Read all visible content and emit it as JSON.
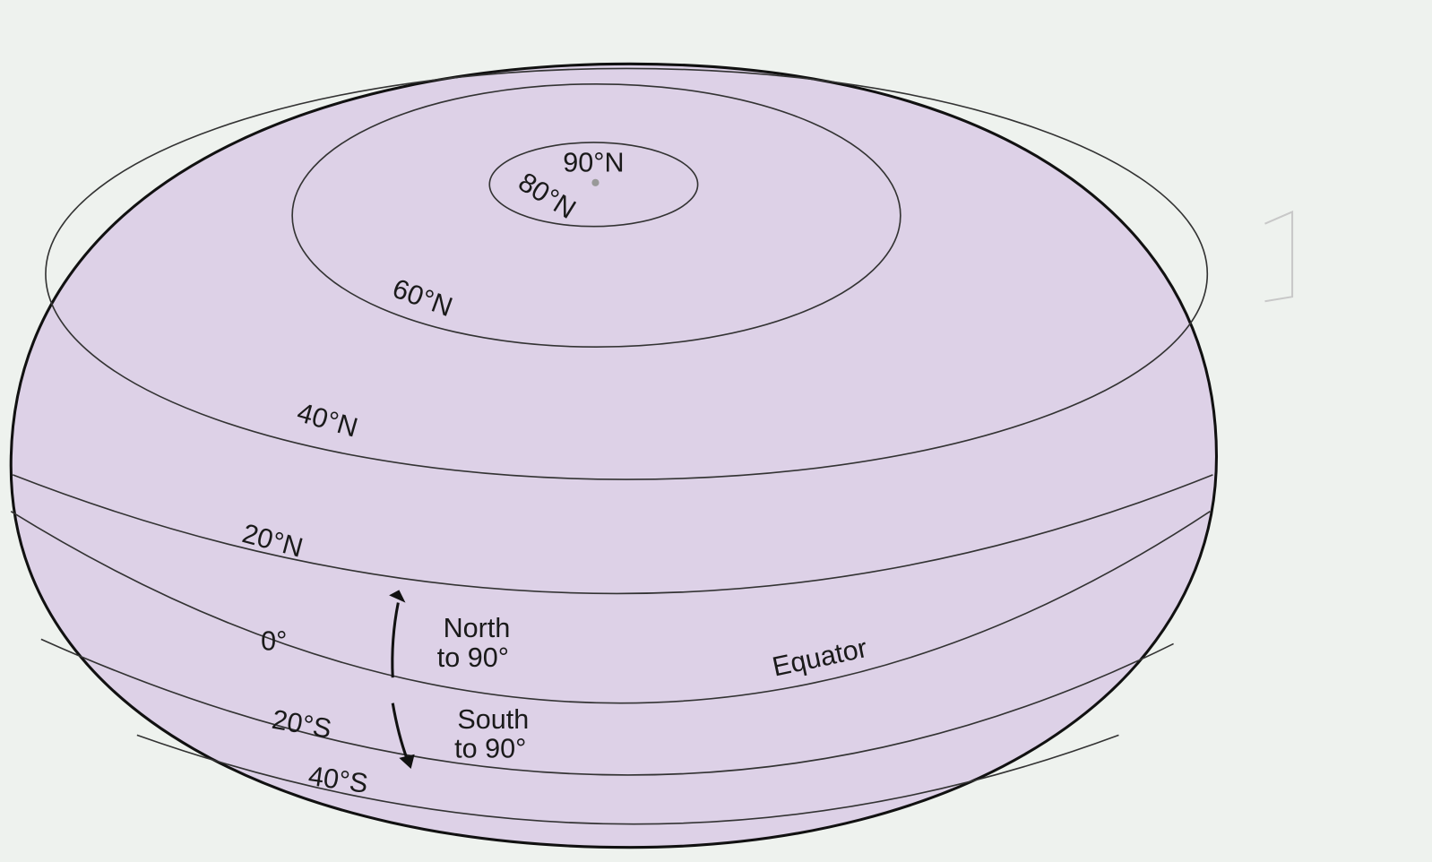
{
  "labels": {
    "lat_90n": "90°N",
    "lat_80n": "80°N",
    "lat_60n": "60°N",
    "lat_40n": "40°N",
    "lat_20n": "20°N",
    "lat_0": "0°",
    "equator": "Equator",
    "lat_20s": "20°S",
    "lat_40s": "40°S"
  },
  "arrows": {
    "north": [
      "North",
      "to 90°"
    ],
    "south": [
      "South",
      "to 90°"
    ]
  }
}
